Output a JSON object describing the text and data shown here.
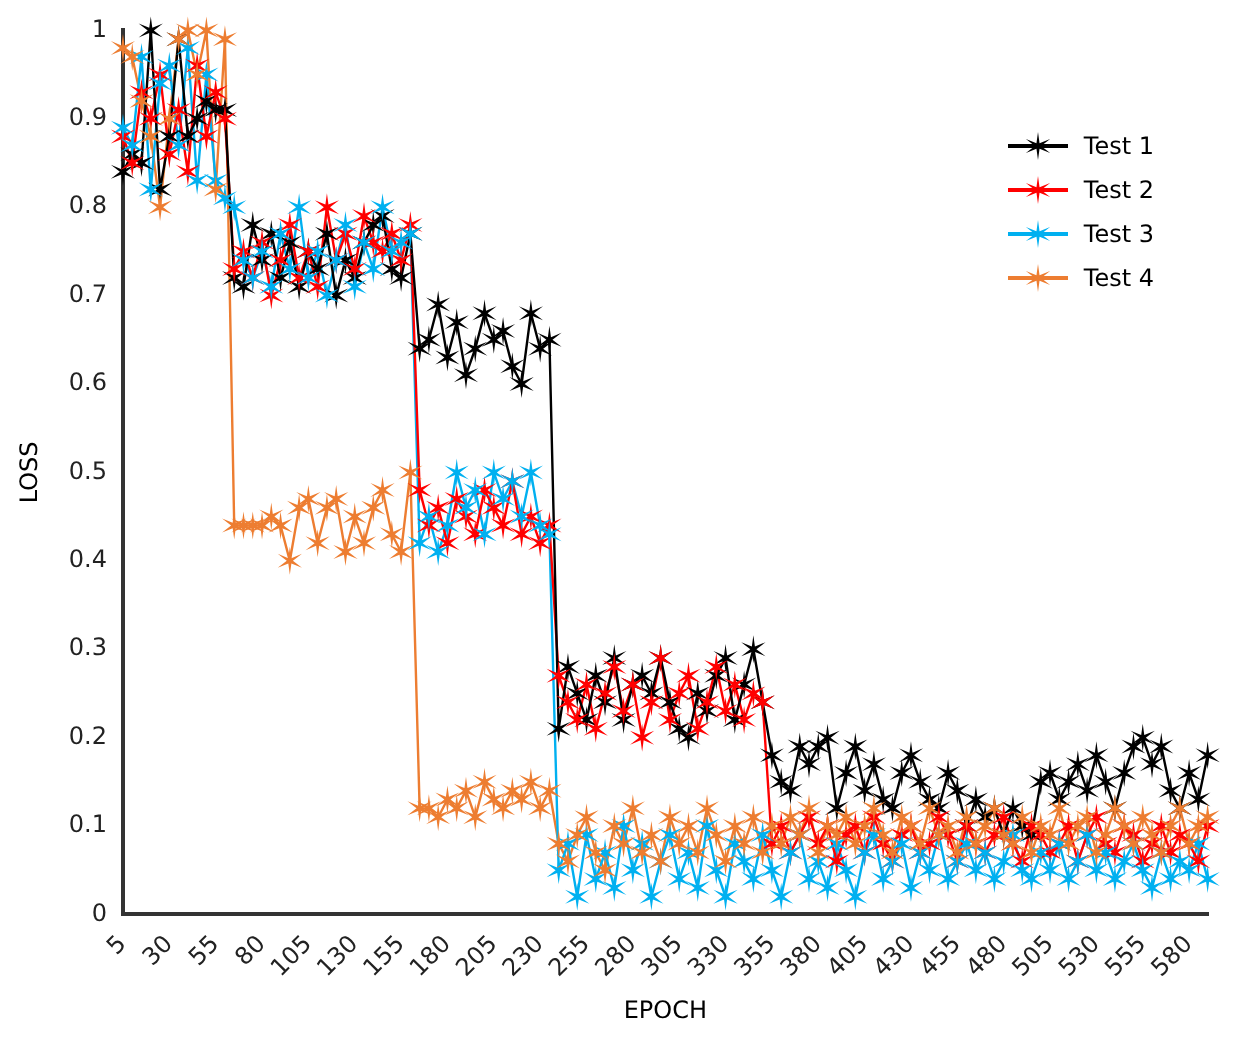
{
  "chart_data": {
    "type": "line",
    "xlabel": "EPOCH",
    "ylabel": "LOSS",
    "marker": "cross",
    "legend": "top right",
    "categories": [
      "5",
      null,
      null,
      null,
      null,
      "30",
      null,
      null,
      null,
      null,
      "55",
      null,
      null,
      null,
      null,
      "80",
      null,
      null,
      null,
      null,
      "105",
      null,
      null,
      null,
      null,
      "130",
      null,
      null,
      null,
      null,
      "155",
      null,
      null,
      null,
      null,
      "180",
      null,
      null,
      null,
      null,
      "205",
      null,
      null,
      null,
      null,
      "230",
      null,
      null,
      null,
      null,
      "255",
      null,
      null,
      null,
      null,
      "280",
      null,
      null,
      null,
      null,
      "305",
      null,
      null,
      null,
      null,
      "330",
      null,
      null,
      null,
      null,
      "355",
      null,
      null,
      null,
      null,
      "380",
      null,
      null,
      null,
      null,
      "405",
      null,
      null,
      null,
      null,
      "430",
      null,
      null,
      null,
      null,
      "455",
      null,
      null,
      null,
      null,
      "480",
      null,
      null,
      null,
      null,
      "505",
      null,
      null,
      null,
      null,
      "530",
      null,
      null,
      null,
      null,
      "555",
      null,
      null,
      null,
      null,
      "580",
      null,
      null
    ],
    "ylim": [
      0,
      1
    ],
    "yticks": [
      0,
      0.1,
      0.2,
      0.3,
      0.4,
      0.5,
      0.6,
      0.7,
      0.8,
      0.9,
      1
    ],
    "series": [
      {
        "name": "Test 1",
        "color": "#000000",
        "values": [
          0.84,
          0.86,
          0.85,
          1.0,
          0.82,
          0.88,
          0.99,
          0.88,
          0.9,
          0.92,
          0.91,
          0.91,
          0.72,
          0.71,
          0.78,
          0.74,
          0.77,
          0.72,
          0.76,
          0.71,
          0.75,
          0.73,
          0.77,
          0.7,
          0.74,
          0.72,
          0.76,
          0.78,
          0.79,
          0.73,
          0.72,
          0.77,
          0.64,
          0.65,
          0.69,
          0.63,
          0.67,
          0.61,
          0.64,
          0.68,
          0.65,
          0.66,
          0.62,
          0.6,
          0.68,
          0.64,
          0.65,
          0.21,
          0.28,
          0.25,
          0.22,
          0.27,
          0.24,
          0.29,
          0.22,
          0.26,
          0.27,
          0.25,
          0.29,
          0.24,
          0.21,
          0.2,
          0.25,
          0.23,
          0.27,
          0.29,
          0.22,
          0.26,
          0.3,
          0.24,
          0.18,
          0.15,
          0.14,
          0.19,
          0.17,
          0.19,
          0.2,
          0.12,
          0.16,
          0.19,
          0.14,
          0.17,
          0.13,
          0.12,
          0.16,
          0.18,
          0.15,
          0.13,
          0.12,
          0.16,
          0.14,
          0.1,
          0.13,
          0.11,
          0.12,
          0.09,
          0.12,
          0.1,
          0.09,
          0.15,
          0.16,
          0.13,
          0.15,
          0.17,
          0.14,
          0.18,
          0.15,
          0.12,
          0.16,
          0.19,
          0.2,
          0.17,
          0.19,
          0.14,
          0.12,
          0.16,
          0.13,
          0.18
        ]
      },
      {
        "name": "Test 2",
        "color": "#ff0000",
        "values": [
          0.88,
          0.85,
          0.93,
          0.9,
          0.95,
          0.86,
          0.91,
          0.84,
          0.96,
          0.88,
          0.93,
          0.9,
          0.73,
          0.75,
          0.72,
          0.76,
          0.7,
          0.74,
          0.78,
          0.72,
          0.75,
          0.71,
          0.8,
          0.74,
          0.77,
          0.73,
          0.79,
          0.76,
          0.75,
          0.77,
          0.74,
          0.78,
          0.48,
          0.44,
          0.46,
          0.42,
          0.47,
          0.45,
          0.43,
          0.48,
          0.46,
          0.44,
          0.49,
          0.43,
          0.45,
          0.42,
          0.44,
          0.27,
          0.24,
          0.22,
          0.26,
          0.21,
          0.25,
          0.28,
          0.23,
          0.26,
          0.2,
          0.24,
          0.29,
          0.22,
          0.25,
          0.27,
          0.21,
          0.24,
          0.28,
          0.23,
          0.26,
          0.22,
          0.25,
          0.24,
          0.08,
          0.1,
          0.07,
          0.09,
          0.11,
          0.08,
          0.1,
          0.06,
          0.09,
          0.1,
          0.07,
          0.11,
          0.08,
          0.06,
          0.09,
          0.1,
          0.07,
          0.08,
          0.11,
          0.09,
          0.06,
          0.1,
          0.08,
          0.07,
          0.09,
          0.11,
          0.08,
          0.06,
          0.1,
          0.09,
          0.07,
          0.08,
          0.1,
          0.06,
          0.09,
          0.11,
          0.08,
          0.07,
          0.1,
          0.09,
          0.06,
          0.08,
          0.1,
          0.07,
          0.09,
          0.08,
          0.06,
          0.1
        ]
      },
      {
        "name": "Test 3",
        "color": "#00b0f0",
        "values": [
          0.89,
          0.87,
          0.97,
          0.82,
          0.94,
          0.96,
          0.87,
          0.98,
          0.83,
          0.95,
          0.83,
          0.81,
          0.8,
          0.74,
          0.72,
          0.75,
          0.71,
          0.77,
          0.73,
          0.8,
          0.72,
          0.75,
          0.7,
          0.74,
          0.78,
          0.71,
          0.76,
          0.73,
          0.8,
          0.75,
          0.76,
          0.77,
          0.42,
          0.45,
          0.41,
          0.44,
          0.5,
          0.46,
          0.48,
          0.43,
          0.5,
          0.47,
          0.49,
          0.45,
          0.5,
          0.44,
          0.43,
          0.05,
          0.08,
          0.02,
          0.09,
          0.04,
          0.07,
          0.03,
          0.1,
          0.05,
          0.08,
          0.02,
          0.06,
          0.09,
          0.04,
          0.07,
          0.03,
          0.1,
          0.05,
          0.02,
          0.08,
          0.06,
          0.04,
          0.09,
          0.05,
          0.02,
          0.07,
          0.09,
          0.04,
          0.06,
          0.03,
          0.08,
          0.05,
          0.02,
          0.07,
          0.09,
          0.04,
          0.06,
          0.08,
          0.03,
          0.07,
          0.05,
          0.09,
          0.04,
          0.06,
          0.08,
          0.05,
          0.07,
          0.04,
          0.06,
          0.09,
          0.05,
          0.04,
          0.07,
          0.05,
          0.08,
          0.04,
          0.06,
          0.09,
          0.05,
          0.07,
          0.04,
          0.06,
          0.08,
          0.05,
          0.03,
          0.07,
          0.04,
          0.06,
          0.05,
          0.08,
          0.04
        ]
      },
      {
        "name": "Test 4",
        "color": "#ed7d31",
        "values": [
          0.98,
          0.97,
          0.92,
          0.88,
          0.8,
          0.9,
          0.99,
          1.0,
          0.95,
          1.0,
          0.82,
          0.99,
          0.44,
          0.44,
          0.44,
          0.44,
          0.45,
          0.44,
          0.4,
          0.46,
          0.47,
          0.42,
          0.46,
          0.47,
          0.41,
          0.45,
          0.42,
          0.46,
          0.48,
          0.43,
          0.41,
          0.5,
          0.12,
          0.12,
          0.11,
          0.13,
          0.12,
          0.14,
          0.11,
          0.15,
          0.13,
          0.12,
          0.14,
          0.13,
          0.15,
          0.12,
          0.14,
          0.08,
          0.06,
          0.09,
          0.11,
          0.07,
          0.05,
          0.1,
          0.08,
          0.12,
          0.07,
          0.09,
          0.06,
          0.11,
          0.08,
          0.1,
          0.07,
          0.12,
          0.09,
          0.06,
          0.1,
          0.08,
          0.11,
          0.07,
          0.1,
          0.08,
          0.11,
          0.09,
          0.12,
          0.07,
          0.1,
          0.09,
          0.11,
          0.08,
          0.1,
          0.12,
          0.09,
          0.07,
          0.11,
          0.1,
          0.08,
          0.12,
          0.09,
          0.1,
          0.07,
          0.11,
          0.08,
          0.1,
          0.12,
          0.09,
          0.08,
          0.11,
          0.07,
          0.1,
          0.09,
          0.12,
          0.08,
          0.1,
          0.11,
          0.07,
          0.09,
          0.12,
          0.1,
          0.08,
          0.11,
          0.09,
          0.07,
          0.1,
          0.12,
          0.08,
          0.1,
          0.11
        ]
      }
    ]
  }
}
